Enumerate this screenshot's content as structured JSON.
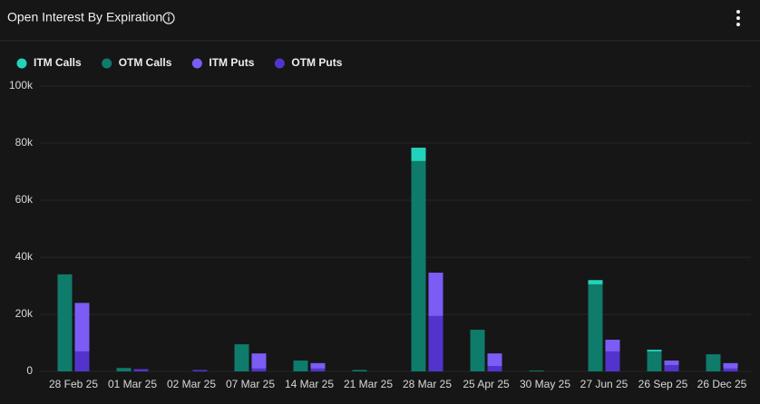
{
  "chart_data": {
    "type": "bar",
    "title": "Open Interest By Expiration",
    "categories": [
      "28 Feb 25",
      "01 Mar 25",
      "02 Mar 25",
      "07 Mar 25",
      "14 Mar 25",
      "21 Mar 25",
      "28 Mar 25",
      "25 Apr 25",
      "30 May 25",
      "27 Jun 25",
      "26 Sep 25",
      "26 Dec 25"
    ],
    "series": [
      {
        "name": "ITM Calls",
        "color": "#22d3bb",
        "stack": "calls",
        "values": [
          0,
          0,
          0,
          0,
          0,
          0,
          4700,
          0,
          0,
          1500,
          600,
          0
        ]
      },
      {
        "name": "OTM Calls",
        "color": "#0f7b6b",
        "stack": "calls",
        "values": [
          34000,
          1200,
          0,
          9500,
          3800,
          500,
          73700,
          14600,
          300,
          30500,
          7000,
          6000
        ]
      },
      {
        "name": "ITM Puts",
        "color": "#7b5cf5",
        "stack": "puts",
        "values": [
          17000,
          0,
          0,
          5300,
          1900,
          0,
          15200,
          4400,
          0,
          4100,
          1600,
          1900
        ]
      },
      {
        "name": "OTM Puts",
        "color": "#5234cc",
        "stack": "puts",
        "values": [
          7000,
          800,
          500,
          1000,
          1000,
          0,
          19400,
          1900,
          0,
          7000,
          2200,
          1000
        ]
      }
    ],
    "ylim": [
      0,
      100000
    ],
    "yticks": [
      0,
      {
        "value": 20000,
        "label": "20k"
      },
      {
        "value": 40000,
        "label": "40k"
      },
      {
        "value": 60000,
        "label": "60k"
      },
      {
        "value": 80000,
        "label": "80k"
      },
      {
        "value": 100000,
        "label": "100k"
      }
    ],
    "grid": true
  }
}
